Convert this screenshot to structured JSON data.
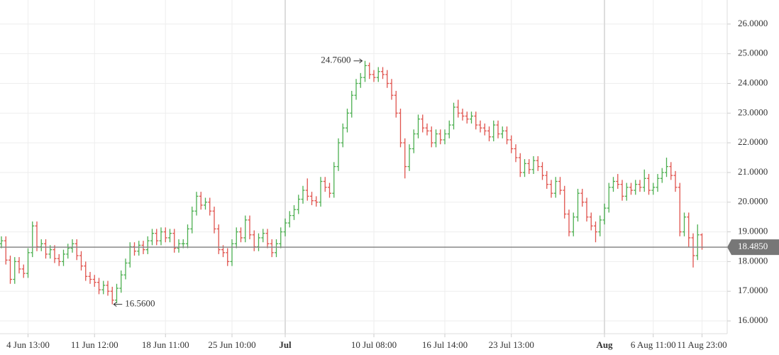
{
  "chart_data": {
    "type": "ohlc",
    "categories": [
      null,
      null,
      null,
      null,
      null,
      null,
      "4 Jun 13:00",
      null,
      null,
      null,
      null,
      null,
      null,
      null,
      null,
      null,
      null,
      null,
      null,
      null,
      null,
      "11 Jun 12:00",
      null,
      null,
      null,
      null,
      null,
      null,
      null,
      null,
      null,
      null,
      null,
      null,
      null,
      null,
      null,
      "18 Jun 11:00",
      null,
      null,
      null,
      null,
      null,
      null,
      null,
      null,
      null,
      null,
      null,
      null,
      null,
      null,
      "25 Jun 10:00",
      null,
      null,
      null,
      null,
      null,
      null,
      null,
      null,
      null,
      null,
      null,
      "Jul",
      null,
      null,
      null,
      null,
      null,
      null,
      null,
      null,
      null,
      null,
      null,
      null,
      null,
      null,
      null,
      null,
      null,
      null,
      null,
      "10 Jul 08:00",
      null,
      null,
      null,
      null,
      null,
      null,
      null,
      null,
      null,
      null,
      null,
      null,
      null,
      null,
      null,
      "16 Jul 14:00",
      null,
      null,
      null,
      null,
      null,
      null,
      null,
      null,
      null,
      null,
      null,
      null,
      null,
      null,
      "23 Jul 13:00",
      null,
      null,
      null,
      null,
      null,
      null,
      null,
      null,
      null,
      null,
      null,
      null,
      null,
      null,
      null,
      null,
      null,
      null,
      null,
      null,
      "Aug",
      null,
      null,
      null,
      null,
      null,
      null,
      null,
      null,
      null,
      null,
      "6 Aug 11:00",
      null,
      null,
      null,
      null,
      null,
      null,
      null,
      null,
      null,
      null,
      "11 Aug 23:00"
    ],
    "open": [
      18.6,
      18.7,
      18.05,
      17.4,
      18,
      17.75,
      17.6,
      18.3,
      19.2,
      18.5,
      18.6,
      18.25,
      18.4,
      18.1,
      18,
      18.25,
      18.45,
      18.6,
      18.2,
      17.85,
      17.5,
      17.4,
      17.3,
      17.05,
      17.2,
      17,
      16.7,
      17.1,
      17.55,
      17.95,
      18.5,
      18.35,
      18.55,
      18.4,
      18.7,
      18.95,
      18.7,
      19,
      18.8,
      18.95,
      18.45,
      18.6,
      18.6,
      19.1,
      19.7,
      20.2,
      19.9,
      20,
      19.7,
      19.1,
      18.4,
      18.3,
      18,
      18.6,
      19,
      18.8,
      19.4,
      18.9,
      18.5,
      18.8,
      18.95,
      18.6,
      18.3,
      18.6,
      19,
      19.3,
      19.55,
      19.75,
      20.1,
      20.4,
      20.2,
      20.05,
      20,
      20.7,
      20.5,
      20.3,
      21.2,
      22,
      22.5,
      23,
      23.6,
      24,
      24.2,
      24.6,
      24.3,
      24.2,
      24.4,
      24.3,
      24,
      23.6,
      23,
      22,
      21.2,
      21.8,
      22.3,
      22.8,
      22.5,
      22.4,
      22,
      22.3,
      22.1,
      22.3,
      22.6,
      23.2,
      23,
      22.9,
      22.8,
      22.9,
      22.6,
      22.5,
      22.4,
      22.2,
      22.6,
      22.3,
      22.4,
      22.1,
      21.8,
      21.5,
      21,
      21.3,
      21.1,
      21.4,
      21.2,
      20.9,
      20.6,
      20.3,
      20.7,
      20.4,
      19.6,
      19,
      19.5,
      20.3,
      20,
      19.5,
      19.2,
      19,
      19.4,
      19.8,
      20.5,
      20.7,
      20.6,
      20.2,
      20.5,
      20.4,
      20.6,
      20.5,
      20.8,
      20.4,
      20.5,
      20.8,
      21,
      21.2,
      20.9,
      20.5,
      19,
      19.5,
      18.8,
      18.2,
      18.9
    ],
    "high": [
      18.85,
      18.85,
      18.2,
      18.15,
      18.15,
      17.9,
      18.45,
      19.35,
      19.35,
      18.75,
      18.75,
      18.55,
      18.55,
      18.25,
      18.4,
      18.6,
      18.75,
      18.75,
      18.35,
      18,
      17.65,
      17.55,
      17.45,
      17.35,
      17.35,
      17.15,
      17.25,
      17.7,
      18.1,
      18.65,
      18.65,
      18.7,
      18.7,
      18.85,
      19.1,
      19.1,
      19.15,
      19.15,
      19.1,
      19.1,
      18.75,
      18.75,
      19.25,
      19.85,
      20.35,
      20.35,
      20.15,
      20.15,
      19.85,
      19.25,
      18.55,
      18.45,
      18.75,
      19.15,
      19.15,
      19.55,
      19.55,
      19.05,
      18.95,
      19.1,
      19.1,
      18.75,
      18.75,
      19.15,
      19.45,
      19.7,
      19.9,
      20.25,
      20.55,
      20.8,
      20.35,
      20.2,
      20.85,
      20.85,
      20.65,
      21.35,
      22.15,
      22.65,
      23.15,
      23.75,
      24.15,
      24.35,
      24.76,
      24.7,
      24.45,
      24.55,
      24.55,
      24.45,
      24.15,
      23.75,
      23.15,
      22.15,
      21.95,
      22.45,
      22.95,
      22.95,
      22.65,
      22.55,
      22.45,
      22.45,
      22.45,
      22.75,
      23.35,
      23.45,
      23.15,
      23.05,
      23.05,
      23.05,
      22.75,
      22.65,
      22.55,
      22.75,
      22.75,
      22.55,
      22.55,
      22.25,
      21.95,
      21.65,
      21.45,
      21.45,
      21.55,
      21.55,
      21.35,
      21.05,
      20.75,
      20.85,
      20.85,
      20.55,
      19.75,
      19.65,
      20.45,
      20.45,
      20.15,
      19.65,
      19.35,
      19.55,
      19.95,
      20.65,
      20.85,
      20.95,
      20.75,
      20.65,
      20.65,
      20.75,
      20.75,
      21.1,
      20.95,
      20.65,
      20.95,
      21.15,
      21.5,
      21.35,
      21.05,
      20.65,
      19.65,
      19.65,
      18.95,
      19.25,
      18.95
    ],
    "low": [
      18.45,
      17.9,
      17.25,
      17.25,
      17.6,
      17.45,
      17.45,
      18.15,
      18.35,
      18.35,
      18.1,
      18.1,
      17.95,
      17.85,
      17.85,
      18.1,
      18.3,
      18.05,
      17.7,
      17.35,
      17.25,
      17.15,
      16.9,
      16.9,
      16.85,
      16.56,
      16.6,
      16.95,
      17.4,
      17.8,
      18.2,
      18.2,
      18.25,
      18.25,
      18.55,
      18.55,
      18.55,
      18.65,
      18.65,
      18.3,
      18.3,
      18.45,
      18.45,
      18.95,
      19.55,
      19.75,
      19.75,
      19.55,
      18.95,
      18.25,
      18.15,
      17.85,
      17.85,
      18.45,
      18.65,
      18.65,
      18.75,
      18.35,
      18.35,
      18.65,
      18.45,
      18.15,
      18.15,
      18.45,
      18.85,
      19.15,
      19.4,
      19.6,
      19.95,
      20.05,
      19.9,
      19.85,
      19.85,
      20.35,
      20.15,
      20.15,
      21.05,
      21.85,
      22.35,
      22.85,
      23.45,
      23.85,
      24.05,
      24.15,
      24.05,
      24.05,
      24.15,
      23.85,
      23.45,
      22.85,
      21.85,
      20.8,
      21.05,
      21.65,
      22.15,
      22.35,
      22.25,
      21.85,
      21.85,
      21.95,
      21.95,
      22.15,
      22.45,
      22.85,
      22.75,
      22.65,
      22.65,
      22.45,
      22.35,
      22.25,
      22.05,
      22.05,
      22.15,
      22.15,
      21.95,
      21.65,
      21.35,
      20.85,
      20.85,
      20.95,
      20.95,
      21.05,
      20.75,
      20.45,
      20.15,
      20.15,
      20.25,
      19.45,
      18.85,
      18.85,
      19.35,
      19.85,
      19.35,
      19.05,
      18.65,
      18.85,
      19.25,
      19.65,
      20.35,
      20.45,
      20.05,
      20.05,
      20.25,
      20.25,
      20.35,
      20.35,
      20.25,
      20.25,
      20.35,
      20.65,
      20.85,
      20.75,
      20.35,
      18.85,
      18.85,
      18.5,
      17.8,
      18.05,
      18.4
    ],
    "close": [
      18.7,
      18.05,
      17.4,
      18,
      17.75,
      17.6,
      18.3,
      19.2,
      18.5,
      18.6,
      18.25,
      18.4,
      18.1,
      18,
      18.25,
      18.45,
      18.6,
      18.2,
      17.85,
      17.5,
      17.4,
      17.3,
      17.05,
      17.2,
      17,
      16.7,
      17.1,
      17.55,
      17.95,
      18.5,
      18.35,
      18.55,
      18.4,
      18.7,
      18.95,
      18.7,
      19,
      18.8,
      18.95,
      18.45,
      18.6,
      18.6,
      19.1,
      19.7,
      20.2,
      19.9,
      20,
      19.7,
      19.1,
      18.4,
      18.3,
      18,
      18.6,
      19,
      18.8,
      19.4,
      18.9,
      18.5,
      18.8,
      18.95,
      18.6,
      18.3,
      18.6,
      19,
      19.3,
      19.55,
      19.75,
      20.1,
      20.4,
      20.2,
      20.05,
      20,
      20.7,
      20.5,
      20.3,
      21.2,
      22,
      22.5,
      23,
      23.6,
      24,
      24.2,
      24.6,
      24.3,
      24.2,
      24.4,
      24.3,
      24,
      23.6,
      23,
      22,
      21.2,
      21.8,
      22.3,
      22.8,
      22.5,
      22.4,
      22,
      22.3,
      22.1,
      22.3,
      22.6,
      23.2,
      23,
      22.9,
      22.8,
      22.9,
      22.6,
      22.5,
      22.4,
      22.2,
      22.6,
      22.3,
      22.4,
      22.1,
      21.8,
      21.5,
      21,
      21.3,
      21.1,
      21.4,
      21.2,
      20.9,
      20.6,
      20.3,
      20.7,
      20.4,
      19.6,
      19,
      19.5,
      20.3,
      20,
      19.5,
      19.2,
      19,
      19.4,
      19.8,
      20.5,
      20.7,
      20.6,
      20.2,
      20.5,
      20.4,
      20.6,
      20.5,
      20.8,
      20.4,
      20.5,
      20.8,
      21,
      21.2,
      20.9,
      20.5,
      19,
      19.5,
      18.8,
      18.2,
      18.9,
      18.485
    ],
    "up_color": "#4caf50",
    "down_color": "#e0534d",
    "ylim": [
      15.57,
      26.81
    ],
    "yticks": [
      {
        "value": 16,
        "label": "16.0000"
      },
      {
        "value": 17,
        "label": "17.0000"
      },
      {
        "value": 18,
        "label": "18.0000"
      },
      {
        "value": 19,
        "label": "19.0000"
      },
      {
        "value": 20,
        "label": "20.0000"
      },
      {
        "value": 21,
        "label": "21.0000"
      },
      {
        "value": 22,
        "label": "22.0000"
      },
      {
        "value": 23,
        "label": "23.0000"
      },
      {
        "value": 24,
        "label": "24.0000"
      },
      {
        "value": 25,
        "label": "25.0000"
      },
      {
        "value": 26,
        "label": "26.0000"
      }
    ],
    "grid": true,
    "annotations": [
      {
        "label": "24.7600",
        "value": 24.76
      },
      {
        "label": "16.5600",
        "value": 16.56
      }
    ],
    "last_price": {
      "value": 18.485,
      "label": "18.4850"
    }
  }
}
